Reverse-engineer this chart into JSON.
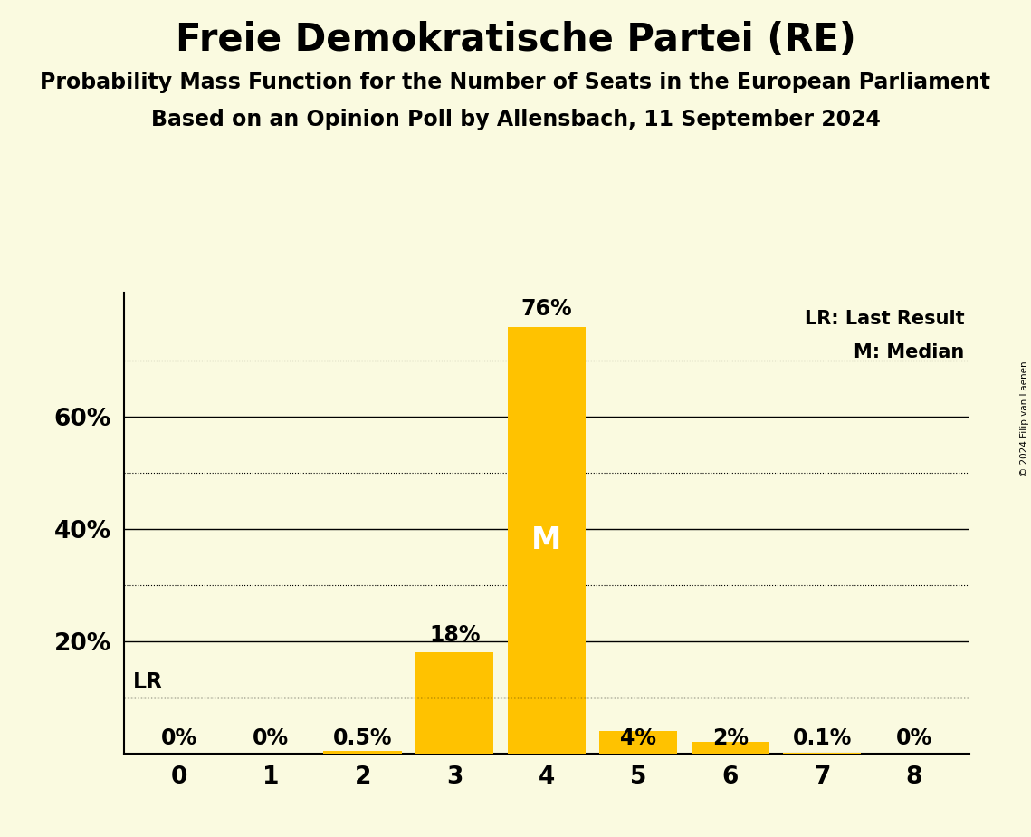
{
  "title": "Freie Demokratische Partei (RE)",
  "subtitle1": "Probability Mass Function for the Number of Seats in the European Parliament",
  "subtitle2": "Based on an Opinion Poll by Allensbach, 11 September 2024",
  "copyright": "© 2024 Filip van Laenen",
  "categories": [
    0,
    1,
    2,
    3,
    4,
    5,
    6,
    7,
    8
  ],
  "values": [
    0.0,
    0.0,
    0.005,
    0.18,
    0.76,
    0.04,
    0.02,
    0.001,
    0.0
  ],
  "bar_labels": [
    "0%",
    "0%",
    "0.5%",
    "18%",
    "76%",
    "4%",
    "2%",
    "0.1%",
    "0%"
  ],
  "bar_color": "#FFC200",
  "background_color": "#FAFAE0",
  "median_bar": 4,
  "lr_value": 0.1,
  "lr_label": "LR",
  "median_label": "M",
  "legend_lr": "LR: Last Result",
  "legend_m": "M: Median",
  "solid_yticks": [
    0.2,
    0.4,
    0.6
  ],
  "dotted_yticks": [
    0.1,
    0.3,
    0.5,
    0.7
  ],
  "ylim": [
    0,
    0.82
  ],
  "title_fontsize": 30,
  "subtitle_fontsize": 17,
  "axis_fontsize": 19,
  "bar_label_fontsize": 17,
  "legend_fontsize": 15,
  "lr_fontsize": 17
}
